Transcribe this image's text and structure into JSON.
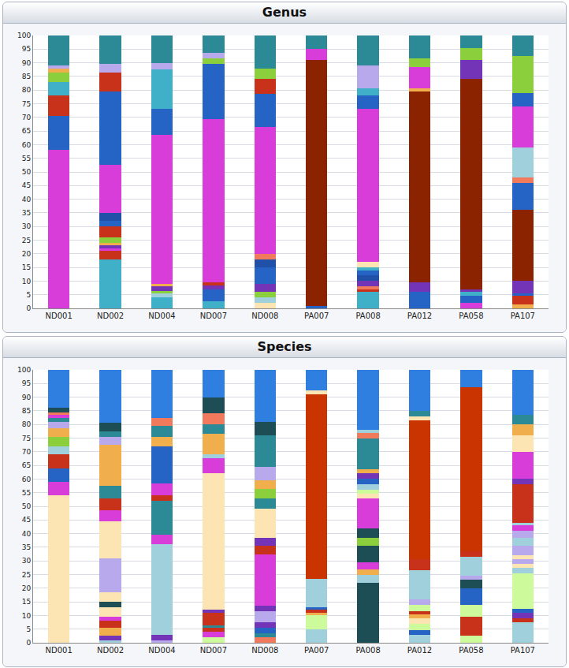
{
  "chart_data": [
    {
      "type": "bar",
      "title": "Genus",
      "stacked": true,
      "grid": true,
      "categories": [
        "ND001",
        "ND002",
        "ND004",
        "ND007",
        "ND008",
        "PA007",
        "PA008",
        "PA012",
        "PA058",
        "PA107"
      ],
      "ylim": [
        0,
        100
      ],
      "yticks": [
        0,
        5,
        10,
        15,
        20,
        25,
        30,
        35,
        40,
        45,
        50,
        55,
        60,
        65,
        70,
        75,
        80,
        85,
        90,
        95,
        100
      ],
      "segments": [
        {
          "values": [
            58,
            12.5,
            7.5,
            5,
            3.5,
            1.5,
            1,
            11
          ],
          "colors": [
            "#d93dd9",
            "#2563c4",
            "#c8321a",
            "#3fb0c8",
            "#8ccf3c",
            "#f0ae4c",
            "#b8a8ec",
            "#2b8a96"
          ]
        },
        {
          "values": [
            18,
            3,
            1,
            1,
            1,
            2,
            4,
            2,
            3,
            17.5,
            27,
            7,
            3,
            10.5
          ],
          "colors": [
            "#3fb0c8",
            "#c8321a",
            "#d93dd9",
            "#7434b8",
            "#f0ae4c",
            "#8ccf3c",
            "#c8321a",
            "#2563c4",
            "#2050a8",
            "#d93dd9",
            "#2563c4",
            "#c8321a",
            "#b8a8ec",
            "#2b8a96"
          ]
        },
        {
          "values": [
            4,
            1.5,
            1,
            1.5,
            1,
            54.5,
            9.5,
            14.5,
            2.5,
            10
          ],
          "colors": [
            "#3fb0c8",
            "#9fd0dc",
            "#8ccf3c",
            "#7434b8",
            "#f0ae4c",
            "#d93dd9",
            "#2563c4",
            "#3fb0c8",
            "#b8a8ec",
            "#2b8a96"
          ]
        },
        {
          "values": [
            2.5,
            4.5,
            1.5,
            1,
            60,
            20,
            2,
            2,
            6.5
          ],
          "colors": [
            "#3fb0c8",
            "#2563c4",
            "#7434b8",
            "#c8321a",
            "#d93dd9",
            "#2563c4",
            "#8ccf3c",
            "#b8a8ec",
            "#2b8a96"
          ]
        },
        {
          "values": [
            2,
            2,
            2,
            3,
            6,
            3,
            2,
            46.5,
            12,
            5.5,
            4,
            12
          ],
          "colors": [
            "#fde5b3",
            "#9fd0dc",
            "#8ccf3c",
            "#7434b8",
            "#2563c4",
            "#2050a8",
            "#f27a5c",
            "#d93dd9",
            "#2563c4",
            "#c8321a",
            "#8ccf3c",
            "#2b8a96"
          ]
        },
        {
          "values": [
            1,
            90,
            4,
            5
          ],
          "colors": [
            "#2563c4",
            "#8b2200",
            "#d93dd9",
            "#2b8a96"
          ]
        },
        {
          "values": [
            6,
            1,
            1,
            2,
            2,
            2,
            1,
            2,
            56,
            5,
            2.5,
            8.5,
            11
          ],
          "colors": [
            "#3fb0c8",
            "#c8321a",
            "#f27a5c",
            "#7434b8",
            "#2050a8",
            "#2563c4",
            "#3fb0c8",
            "#fde5b3",
            "#d93dd9",
            "#2563c4",
            "#3fb0c8",
            "#b8a8ec",
            "#2b8a96"
          ]
        },
        {
          "values": [
            6,
            3.5,
            70,
            1,
            8,
            3,
            8.5
          ],
          "colors": [
            "#2563c4",
            "#7434b8",
            "#8b2200",
            "#f0ae4c",
            "#d93dd9",
            "#8ccf3c",
            "#2b8a96"
          ]
        },
        {
          "values": [
            2,
            2.5,
            1.5,
            1,
            77,
            7,
            4.5,
            4.5
          ],
          "colors": [
            "#d93dd9",
            "#2563c4",
            "#3fb0c8",
            "#7434b8",
            "#8b2200",
            "#7434b8",
            "#8ccf3c",
            "#2b8a96"
          ]
        },
        {
          "values": [
            1.5,
            3,
            1,
            4.5,
            26,
            10,
            2,
            11,
            15,
            5,
            13.5,
            7.5
          ],
          "colors": [
            "#f0ae4c",
            "#c8321a",
            "#2563c4",
            "#7434b8",
            "#8b2200",
            "#2563c4",
            "#f27a5c",
            "#9fd0dc",
            "#d93dd9",
            "#2563c4",
            "#8ccf3c",
            "#2b8a96"
          ]
        }
      ]
    },
    {
      "type": "bar",
      "title": "Species",
      "stacked": true,
      "grid": true,
      "categories": [
        "ND001",
        "ND002",
        "ND004",
        "ND007",
        "ND008",
        "PA007",
        "PA008",
        "PA012",
        "PA058",
        "PA107"
      ],
      "ylim": [
        0,
        100
      ],
      "yticks": [
        0,
        5,
        10,
        15,
        20,
        25,
        30,
        35,
        40,
        45,
        50,
        55,
        60,
        65,
        70,
        75,
        80,
        85,
        90,
        95,
        100
      ],
      "segments": [
        {
          "values": [
            54,
            5,
            5,
            5,
            3,
            3.5,
            3,
            2.5,
            1.5,
            1,
            1,
            1.5,
            14
          ],
          "colors": [
            "#fde5b3",
            "#d93dd9",
            "#2563c4",
            "#c8321a",
            "#9fd0dc",
            "#8ccf3c",
            "#f0ae4c",
            "#b8a8ec",
            "#2b8a96",
            "#d93dd9",
            "#f27a5c",
            "#1e4e55",
            "#2f7fe0"
          ]
        },
        {
          "values": [
            1,
            1.5,
            3,
            2.5,
            1.5,
            3.5,
            2,
            3.5,
            12.5,
            13.5,
            4,
            4.5,
            4.5,
            15,
            3,
            2,
            3,
            19.5
          ],
          "colors": [
            "#9fd0dc",
            "#7434b8",
            "#f0ae4c",
            "#c8321a",
            "#d93dd9",
            "#fde5b3",
            "#1e4e55",
            "#fde5b3",
            "#b8a8ec",
            "#fde5b3",
            "#d93dd9",
            "#c8321a",
            "#2b8a96",
            "#f0ae4c",
            "#b8a8ec",
            "#2b8a96",
            "#1e4e55",
            "#2f7fe0"
          ]
        },
        {
          "values": [
            1,
            2,
            33,
            3.5,
            12.5,
            2,
            4.5,
            13.5,
            3.5,
            4,
            3,
            17.5
          ],
          "colors": [
            "#b8a8ec",
            "#7434b8",
            "#9fd0dc",
            "#d93dd9",
            "#2b8a96",
            "#c8321a",
            "#d93dd9",
            "#2563c4",
            "#f0ae4c",
            "#2b8a96",
            "#f27a5c",
            "#2f7fe0"
          ]
        },
        {
          "values": [
            2,
            2,
            1.5,
            1,
            4.5,
            1,
            50,
            5.5,
            1.5,
            7.5,
            3.5,
            4,
            6,
            10
          ],
          "colors": [
            "#cdfa9a",
            "#d93dd9",
            "#c8321a",
            "#2b8a96",
            "#c8321a",
            "#7434b8",
            "#fde5b3",
            "#d93dd9",
            "#9fd0dc",
            "#f0ae4c",
            "#2b8a96",
            "#f27a5c",
            "#1e4e55",
            "#2f7fe0"
          ]
        },
        {
          "values": [
            2,
            1.5,
            2,
            2,
            4,
            2,
            19,
            3,
            3,
            10.5,
            4,
            3.5,
            3,
            5,
            11.5,
            5,
            19
          ],
          "colors": [
            "#f27a5c",
            "#2b8a96",
            "#2563c4",
            "#7434b8",
            "#b8a8ec",
            "#7434b8",
            "#d93dd9",
            "#c8321a",
            "#7434b8",
            "#fde5b3",
            "#2b8a96",
            "#8ccf3c",
            "#f0ae4c",
            "#b8a8ec",
            "#2b8a96",
            "#1e4e55",
            "#2f7fe0"
          ]
        },
        {
          "values": [
            5,
            5,
            1,
            1,
            1,
            10.5,
            67.5,
            1.5,
            7.5
          ],
          "colors": [
            "#9fd0dc",
            "#cdfa9a",
            "#f0ae4c",
            "#c8321a",
            "#2563c4",
            "#9fd0dc",
            "#c93400",
            "#fde5b3",
            "#2f7fe0"
          ]
        },
        {
          "values": [
            22,
            3,
            2,
            2.5,
            6,
            3,
            3.5,
            11,
            1.5,
            1.5,
            2,
            2,
            2,
            1.5,
            11.5,
            2,
            1,
            22
          ],
          "colors": [
            "#1e4e55",
            "#9fd0dc",
            "#f0ae4c",
            "#d93dd9",
            "#1e4e55",
            "#8ccf3c",
            "#1e4e55",
            "#d93dd9",
            "#fde5b3",
            "#cdfa9a",
            "#9fd0dc",
            "#2563c4",
            "#7434b8",
            "#f0ae4c",
            "#2b8a96",
            "#f27a5c",
            "#9fd0dc",
            "#2f7fe0"
          ]
        },
        {
          "values": [
            3,
            1.5,
            2.5,
            2,
            1.5,
            1,
            2.5,
            2,
            10.5,
            4,
            51,
            1.5,
            2,
            15
          ],
          "colors": [
            "#9fd0dc",
            "#2563c4",
            "#cdfa9a",
            "#fde5b3",
            "#f0ae4c",
            "#c8321a",
            "#cdfa9a",
            "#b8a8ec",
            "#9fd0dc",
            "#c8321a",
            "#c93400",
            "#fde5b3",
            "#2b8a96",
            "#2f7fe0"
          ]
        },
        {
          "values": [
            2.5,
            7,
            4.5,
            6,
            3,
            1.5,
            7,
            2,
            60,
            6.5
          ],
          "colors": [
            "#cdfa9a",
            "#c8321a",
            "#cdfa9a",
            "#2563c4",
            "#1e4e55",
            "#b8a8ec",
            "#9fd0dc",
            "#c8321a",
            "#c93400",
            "#2f7fe0"
          ]
        },
        {
          "values": [
            7.5,
            1.5,
            2,
            1.5,
            13,
            2,
            1.5,
            1.5,
            1.5,
            3.5,
            3,
            2.5,
            2,
            1,
            14,
            2,
            10,
            6,
            4,
            3.5,
            16.5
          ],
          "colors": [
            "#9fd0dc",
            "#c8321a",
            "#7434b8",
            "#2563c4",
            "#cdfa9a",
            "#9fd0dc",
            "#fde5b3",
            "#b8a8ec",
            "#fde5b3",
            "#b8a8ec",
            "#9fd0dc",
            "#b8a8ec",
            "#d93dd9",
            "#9fd0dc",
            "#c8321a",
            "#7434b8",
            "#d93dd9",
            "#fde5b3",
            "#f0ae4c",
            "#2b8a96",
            "#2f7fe0"
          ]
        }
      ]
    }
  ]
}
